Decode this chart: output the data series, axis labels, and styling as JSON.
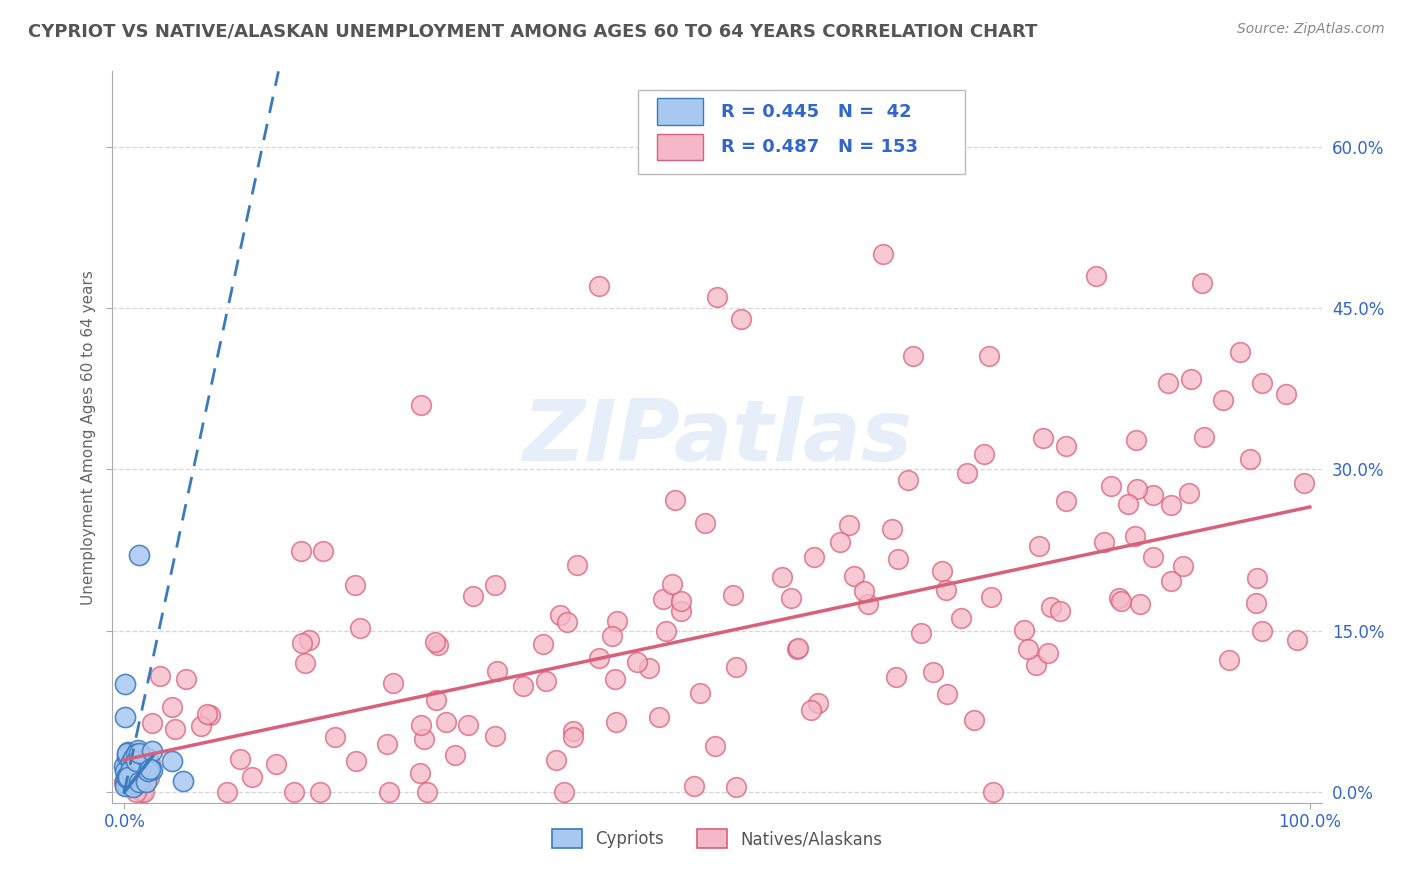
{
  "title": "CYPRIOT VS NATIVE/ALASKAN UNEMPLOYMENT AMONG AGES 60 TO 64 YEARS CORRELATION CHART",
  "source": "Source: ZipAtlas.com",
  "ylabel": "Unemployment Among Ages 60 to 64 years",
  "xlim": [
    -0.01,
    1.01
  ],
  "ylim": [
    -0.01,
    0.67
  ],
  "xtick_pos": [
    0.0,
    1.0
  ],
  "xtick_labels": [
    "0.0%",
    "100.0%"
  ],
  "ytick_pos": [
    0.0,
    0.15,
    0.3,
    0.45,
    0.6
  ],
  "ytick_labels": [
    "0.0%",
    "15.0%",
    "30.0%",
    "45.0%",
    "60.0%"
  ],
  "cypriot_color": "#a8c8f0",
  "cypriot_edge_color": "#3a7abf",
  "native_color": "#f5b8c8",
  "native_edge_color": "#d9607a",
  "cypriot_R": 0.445,
  "cypriot_N": 42,
  "native_R": 0.487,
  "native_N": 153,
  "legend_text_color": "#3366cc",
  "background_color": "#ffffff",
  "grid_color": "#cccccc",
  "title_color": "#555555",
  "axis_label_color": "#666666",
  "cyp_trend_x0": 0.0,
  "cyp_trend_y0": 0.0,
  "cyp_trend_x1": 0.13,
  "cyp_trend_y1": 0.67,
  "nat_trend_x0": 0.0,
  "nat_trend_y0": 0.03,
  "nat_trend_x1": 1.0,
  "nat_trend_y1": 0.265
}
